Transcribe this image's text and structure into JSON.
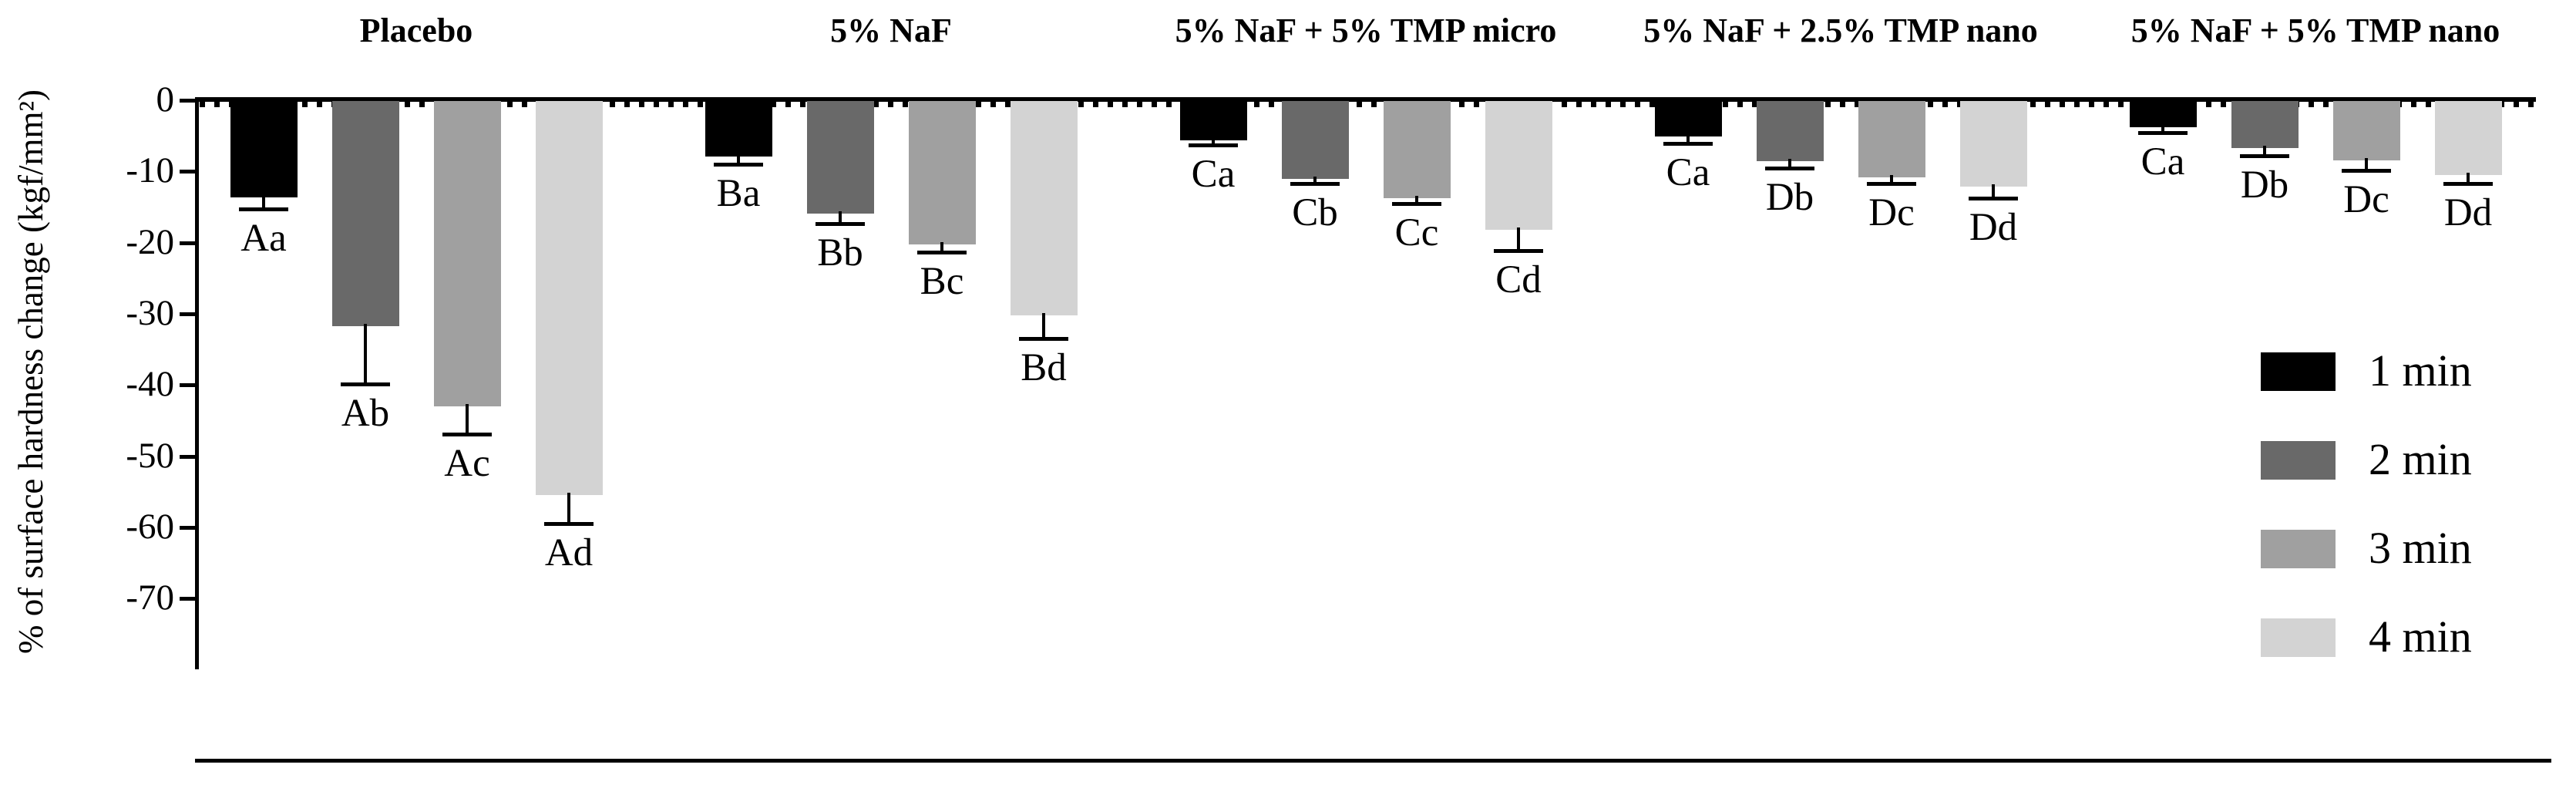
{
  "figure": {
    "background": "#ffffff",
    "axis_color": "#000000"
  },
  "chart_data": {
    "type": "bar",
    "title": "",
    "xlabel": "",
    "ylabel": "% of surface hardness change (kgf/mm²)",
    "ylim": [
      -80,
      0
    ],
    "yticks": [
      "0",
      "-10",
      "-20",
      "-30",
      "-40",
      "-50",
      "-60",
      "-70"
    ],
    "ytick_values": [
      0,
      -10,
      -20,
      -30,
      -40,
      -50,
      -60,
      -70
    ],
    "grid": false,
    "error_bars": "downward with cap",
    "legend_position": "lower right",
    "series": [
      {
        "name": "1 min",
        "color": "#000000"
      },
      {
        "name": "2 min",
        "color": "#696969"
      },
      {
        "name": "3 min",
        "color": "#a0a0a0"
      },
      {
        "name": "4 min",
        "color": "#d3d3d3"
      }
    ],
    "groups": [
      {
        "label": "Placebo",
        "bars": [
          {
            "series": "1 min",
            "value": -13.7,
            "error": 1.4,
            "sig_label": "Aa"
          },
          {
            "series": "2 min",
            "value": -31.7,
            "error": 7.9,
            "sig_label": "Ab"
          },
          {
            "series": "3 min",
            "value": -43.0,
            "error": 3.7,
            "sig_label": "Ac"
          },
          {
            "series": "4 min",
            "value": -55.5,
            "error": 3.8,
            "sig_label": "Ad"
          }
        ]
      },
      {
        "label": "5% NaF",
        "bars": [
          {
            "series": "1 min",
            "value": -7.9,
            "error": 0.9,
            "sig_label": "Ba"
          },
          {
            "series": "2 min",
            "value": -15.9,
            "error": 1.2,
            "sig_label": "Bb"
          },
          {
            "series": "3 min",
            "value": -20.3,
            "error": 0.8,
            "sig_label": "Bc"
          },
          {
            "series": "4 min",
            "value": -30.2,
            "error": 3.1,
            "sig_label": "Bd"
          }
        ]
      },
      {
        "label": "5% NaF + 5% TMP micro",
        "bars": [
          {
            "series": "1 min",
            "value": -5.6,
            "error": 0.5,
            "sig_label": "Ca"
          },
          {
            "series": "2 min",
            "value": -11.0,
            "error": 0.5,
            "sig_label": "Cb"
          },
          {
            "series": "3 min",
            "value": -13.8,
            "error": 0.5,
            "sig_label": "Cc"
          },
          {
            "series": "4 min",
            "value": -18.2,
            "error": 2.7,
            "sig_label": "Cd"
          }
        ]
      },
      {
        "label": "5% NaF + 2.5% TMP nano",
        "bars": [
          {
            "series": "1 min",
            "value": -5.1,
            "error": 0.8,
            "sig_label": "Ca"
          },
          {
            "series": "2 min",
            "value": -8.6,
            "error": 0.7,
            "sig_label": "Db"
          },
          {
            "series": "3 min",
            "value": -10.8,
            "error": 0.7,
            "sig_label": "Dc"
          },
          {
            "series": "4 min",
            "value": -12.1,
            "error": 1.4,
            "sig_label": "Dd"
          }
        ]
      },
      {
        "label": "5% NaF + 5% TMP nano",
        "bars": [
          {
            "series": "1 min",
            "value": -3.8,
            "error": 0.5,
            "sig_label": "Ca"
          },
          {
            "series": "2 min",
            "value": -6.7,
            "error": 0.9,
            "sig_label": "Db"
          },
          {
            "series": "3 min",
            "value": -8.5,
            "error": 1.1,
            "sig_label": "Dc"
          },
          {
            "series": "4 min",
            "value": -10.5,
            "error": 1.0,
            "sig_label": "Dd"
          }
        ]
      }
    ]
  }
}
